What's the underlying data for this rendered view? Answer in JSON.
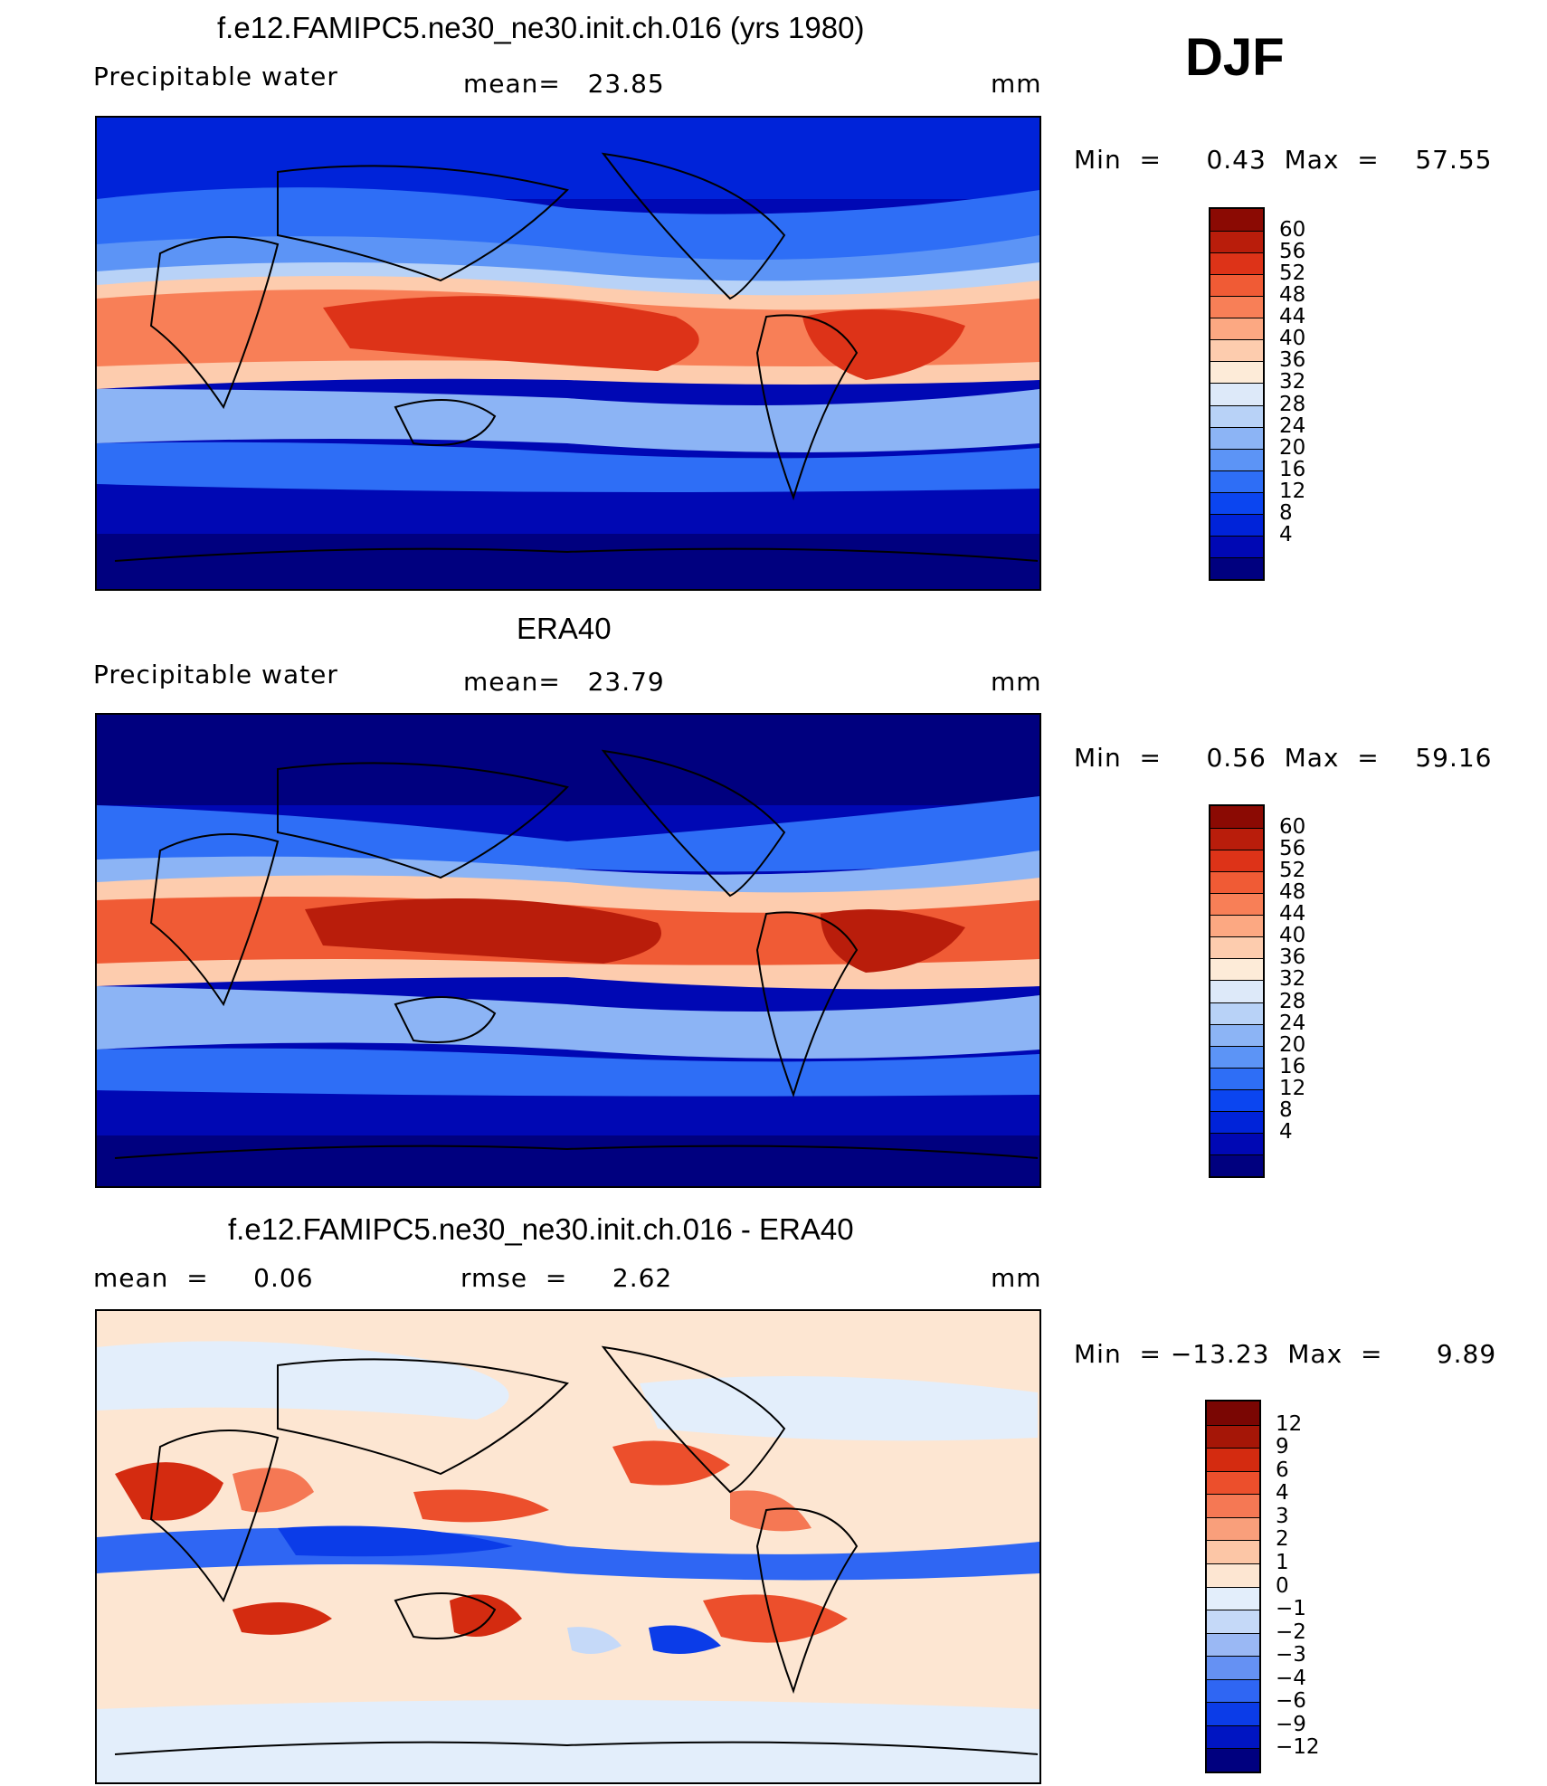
{
  "season": "DJF",
  "colors": {
    "prw_scale": [
      "#00007f",
      "#0008b4",
      "#0023d9",
      "#0b45f0",
      "#2e6ef6",
      "#5c94f6",
      "#8cb4f5",
      "#b8d2f7",
      "#dde9f9",
      "#fdebd8",
      "#fdccae",
      "#fca882",
      "#f87f57",
      "#f05b35",
      "#dd3318",
      "#b91d0b",
      "#8b0a03"
    ],
    "diff_scale": [
      "#00007f",
      "#0015c2",
      "#0b3ce8",
      "#2f66f3",
      "#6591f3",
      "#9ab8f4",
      "#c5d9f8",
      "#e3eefb",
      "#fde6d2",
      "#fcc6a6",
      "#f99f7b",
      "#f57854",
      "#ec4f2c",
      "#d42b10",
      "#a51607",
      "#7a0603"
    ]
  },
  "panels": [
    {
      "title": "f.e12.FAMIPC5.ne30_ne30.init.ch.016 (yrs 1980)",
      "left_label": "Precipitable water",
      "center_label": "mean=   23.85",
      "units": "mm",
      "minmax": "Min  =     0.43  Max  =    57.55",
      "colorbar_labels": [
        "60",
        "56",
        "52",
        "48",
        "44",
        "40",
        "36",
        "32",
        "28",
        "24",
        "20",
        "16",
        "12",
        "8",
        "4"
      ]
    },
    {
      "title": "ERA40",
      "left_label": "Precipitable water",
      "center_label": "mean=   23.79",
      "units": "mm",
      "minmax": "Min  =     0.56  Max  =    59.16",
      "colorbar_labels": [
        "60",
        "56",
        "52",
        "48",
        "44",
        "40",
        "36",
        "32",
        "28",
        "24",
        "20",
        "16",
        "12",
        "8",
        "4"
      ]
    },
    {
      "title": "f.e12.FAMIPC5.ne30_ne30.init.ch.016 - ERA40",
      "left_label": "mean  =     0.06",
      "center_label": "rmse  =     2.62",
      "units": "mm",
      "minmax": "Min  = −13.23  Max  =      9.89",
      "colorbar_labels": [
        "12",
        "9",
        "6",
        "4",
        "3",
        "2",
        "1",
        "0",
        "−1",
        "−2",
        "−3",
        "−4",
        "−6",
        "−9",
        "−12"
      ]
    }
  ]
}
